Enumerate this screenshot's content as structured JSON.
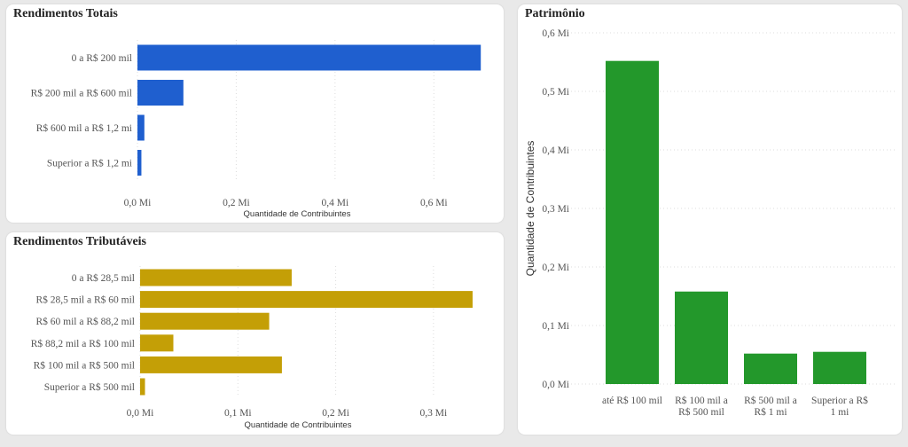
{
  "colors": {
    "totais": "#1f5fcf",
    "trib": "#c49f06",
    "patr": "#23982b"
  },
  "chart_data": [
    {
      "id": "totais",
      "type": "bar",
      "orientation": "horizontal",
      "title": "Rendimentos Totais",
      "categories": [
        "0 a R$ 200 mil",
        "R$ 200 mil a R$ 600 mil",
        "R$ 600 mil a R$ 1,2 mi",
        "Superior a R$ 1,2 mi"
      ],
      "values": [
        0.695,
        0.093,
        0.014,
        0.008
      ],
      "xlabel": "Quantidade de Contribuintes",
      "ylabel": "",
      "xlim": [
        0,
        0.7
      ],
      "ticks": [
        0,
        0.2,
        0.4,
        0.6
      ],
      "tick_labels": [
        "0,0 Mi",
        "0,2 Mi",
        "0,4 Mi",
        "0,6 Mi"
      ],
      "grid": true
    },
    {
      "id": "trib",
      "type": "bar",
      "orientation": "horizontal",
      "title": "Rendimentos Tributáveis",
      "categories": [
        "0 a R$ 28,5 mil",
        "R$ 28,5 mil a R$ 60 mil",
        "R$ 60 mil a R$ 88,2 mil",
        "R$ 88,2 mil a R$ 100 mil",
        "R$ 100 mil a R$ 500 mil",
        "Superior a R$ 500 mil"
      ],
      "values": [
        0.155,
        0.34,
        0.132,
        0.034,
        0.145,
        0.005
      ],
      "xlabel": "Quantidade de Contribuintes",
      "ylabel": "",
      "xlim": [
        0,
        0.35
      ],
      "ticks": [
        0,
        0.1,
        0.2,
        0.3
      ],
      "tick_labels": [
        "0,0 Mi",
        "0,1 Mi",
        "0,2 Mi",
        "0,3 Mi"
      ],
      "grid": true
    },
    {
      "id": "patr",
      "type": "bar",
      "orientation": "vertical",
      "title": "Patrimônio",
      "categories": [
        [
          "até R$ 100 mil"
        ],
        [
          "R$ 100 mil a",
          "R$ 500 mil"
        ],
        [
          "R$ 500 mil a",
          "R$ 1 mi"
        ],
        [
          "Superior a R$",
          "1 mi"
        ]
      ],
      "values": [
        0.552,
        0.158,
        0.052,
        0.055
      ],
      "xlabel": "",
      "ylabel": "Quantidade de Contribuintes",
      "ylim": [
        0,
        0.6
      ],
      "ticks": [
        0,
        0.1,
        0.2,
        0.3,
        0.4,
        0.5,
        0.6
      ],
      "tick_labels": [
        "0,0 Mi",
        "0,1 Mi",
        "0,2 Mi",
        "0,3 Mi",
        "0,4 Mi",
        "0,5 Mi",
        "0,6 Mi"
      ],
      "grid": true
    }
  ]
}
